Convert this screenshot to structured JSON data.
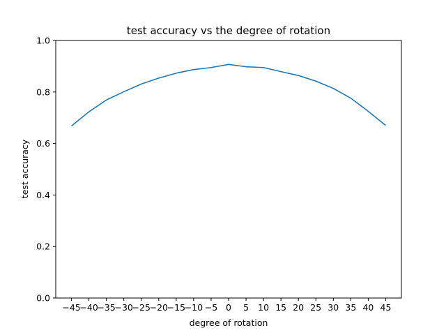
{
  "chart_data": {
    "type": "line",
    "title": "test accuracy vs the degree of rotation",
    "xlabel": "degree of rotation",
    "ylabel": "test accuracy",
    "x": [
      -45,
      -40,
      -35,
      -30,
      -25,
      -20,
      -15,
      -10,
      -5,
      0,
      5,
      10,
      15,
      20,
      25,
      30,
      35,
      40,
      45
    ],
    "x_tick_labels": [
      "−45",
      "−40",
      "−35",
      "−30",
      "−25",
      "−20",
      "−15",
      "−10",
      "−5",
      "0",
      "5",
      "10",
      "15",
      "20",
      "25",
      "30",
      "35",
      "40",
      "45"
    ],
    "y_ticks": [
      0.0,
      0.2,
      0.4,
      0.6,
      0.8,
      1.0
    ],
    "y_tick_labels": [
      "0.0",
      "0.2",
      "0.4",
      "0.6",
      "0.8",
      "1.0"
    ],
    "series": [
      {
        "values": [
          0.668,
          0.723,
          0.769,
          0.801,
          0.831,
          0.854,
          0.873,
          0.887,
          0.895,
          0.907,
          0.898,
          0.895,
          0.879,
          0.864,
          0.842,
          0.814,
          0.776,
          0.725,
          0.67
        ],
        "color": "#1f77b4"
      }
    ],
    "xlim": [
      -49.5,
      49.5
    ],
    "ylim": [
      0.0,
      1.0
    ],
    "grid": false,
    "legend": false
  }
}
